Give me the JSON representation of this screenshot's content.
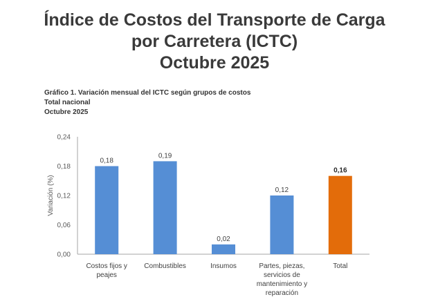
{
  "header": {
    "title_lines": [
      "Índice de Costos del Transporte de Carga",
      "por Carretera (ICTC)",
      "Octubre 2025"
    ]
  },
  "caption": {
    "line1": "Gráfico 1. Variación mensual del ICTC según grupos de costos",
    "line2": "Total nacional",
    "line3": "Octubre 2025"
  },
  "chart_data": {
    "type": "bar",
    "title": "Gráfico 1. Variación mensual del ICTC según grupos de costos",
    "subtitle": "Total nacional — Octubre 2025",
    "xlabel": "",
    "ylabel": "Variación (%)",
    "ylim": [
      0,
      0.24
    ],
    "yticks": [
      0,
      0.06,
      0.12,
      0.18,
      0.24
    ],
    "ytick_labels": [
      "0,00",
      "0,06",
      "0,12",
      "0,18",
      "0,24"
    ],
    "grid": false,
    "legend": "none",
    "categories": [
      [
        "Costos fijos y",
        "peajes"
      ],
      [
        "Combustibles"
      ],
      [
        "Insumos"
      ],
      [
        "Partes, piezas,",
        "servicios de",
        "mantenimiento y",
        "reparación"
      ],
      [
        "Total"
      ]
    ],
    "values": [
      0.18,
      0.19,
      0.02,
      0.12,
      0.16
    ],
    "value_labels": [
      "0,18",
      "0,19",
      "0,02",
      "0,12",
      "0,16"
    ],
    "colors": [
      "#558ED5",
      "#558ED5",
      "#558ED5",
      "#558ED5",
      "#E36C0A"
    ],
    "highlight_index": 4
  },
  "colors": {
    "bar": "#558ED5",
    "total_bar": "#E36C0A",
    "axis": "#A6A6A6"
  }
}
